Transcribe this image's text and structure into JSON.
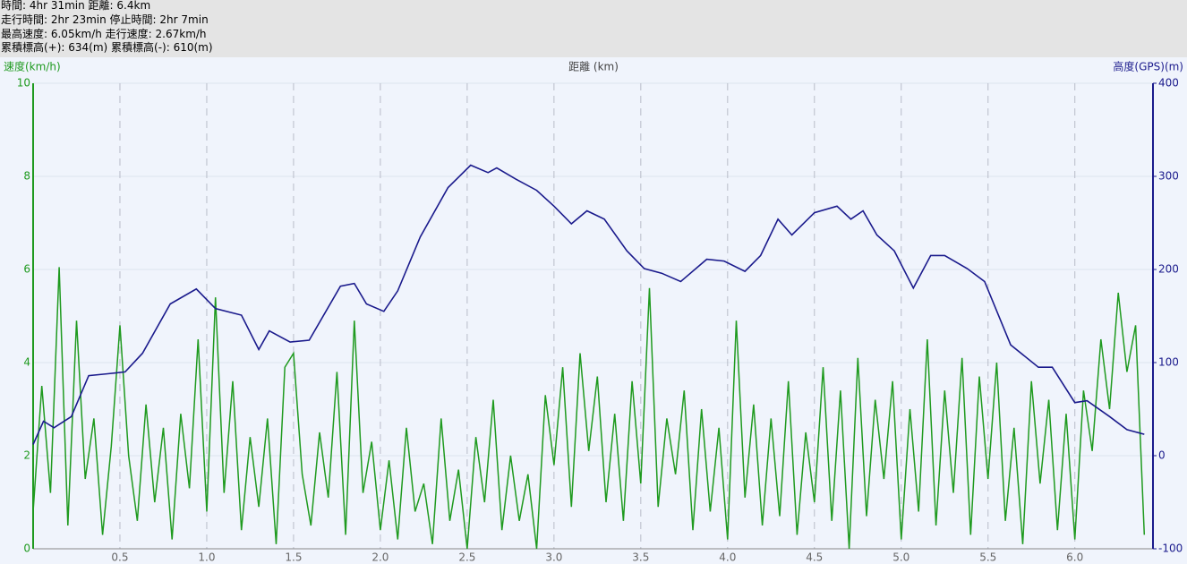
{
  "header": {
    "lines": [
      "時間: 4hr 31min 距離: 6.4km",
      "走行時間: 2hr 23min 停止時間: 2hr 7min",
      "最高速度: 6.05km/h 走行速度: 2.67km/h",
      "累積標高(+): 634(m) 累積標高(-): 610(m)"
    ]
  },
  "chart_data": {
    "type": "line",
    "xlabel": "距離 (km)",
    "ylabel": "速度(km/h)",
    "y2label": "高度(GPS)(m)",
    "xlim": [
      0,
      6.45
    ],
    "ylim": [
      0,
      10
    ],
    "y2lim": [
      -100,
      400
    ],
    "xticks": [
      0.5,
      {
        "value": 1,
        "label": "1.0"
      },
      1.5,
      {
        "value": 2,
        "label": "2.0"
      },
      2.5,
      {
        "value": 3,
        "label": "3.0"
      },
      3.5,
      {
        "value": 4,
        "label": "4.0"
      },
      4.5,
      {
        "value": 5,
        "label": "5.0"
      },
      5.5,
      {
        "value": 6,
        "label": "6.0"
      }
    ],
    "yticks": [
      0,
      2,
      4,
      6,
      8,
      10
    ],
    "y2ticks": [
      -100,
      0,
      100,
      200,
      300,
      400
    ],
    "grid": true,
    "series": [
      {
        "color": "#1f9a1f",
        "axis": "y",
        "x": [
          0,
          0.05,
          0.1,
          0.15,
          0.2,
          0.25,
          0.3,
          0.35,
          0.4,
          0.45,
          0.5,
          0.55,
          0.6,
          0.65,
          0.7,
          0.75,
          0.8,
          0.85,
          0.9,
          0.95,
          1,
          1.05,
          1.1,
          1.15,
          1.2,
          1.25,
          1.3,
          1.35,
          1.4,
          1.45,
          1.5,
          1.55,
          1.6,
          1.65,
          1.7,
          1.75,
          1.8,
          1.85,
          1.9,
          1.95,
          2,
          2.05,
          2.1,
          2.15,
          2.2,
          2.25,
          2.3,
          2.35,
          2.4,
          2.45,
          2.5,
          2.55,
          2.6,
          2.65,
          2.7,
          2.75,
          2.8,
          2.85,
          2.9,
          2.95,
          3,
          3.05,
          3.1,
          3.15,
          3.2,
          3.25,
          3.3,
          3.35,
          3.4,
          3.45,
          3.5,
          3.55,
          3.6,
          3.65,
          3.7,
          3.75,
          3.8,
          3.85,
          3.9,
          3.95,
          4,
          4.05,
          4.1,
          4.15,
          4.2,
          4.25,
          4.3,
          4.35,
          4.4,
          4.45,
          4.5,
          4.55,
          4.6,
          4.65,
          4.7,
          4.75,
          4.8,
          4.85,
          4.9,
          4.95,
          5,
          5.05,
          5.1,
          5.15,
          5.2,
          5.25,
          5.3,
          5.35,
          5.4,
          5.45,
          5.5,
          5.55,
          5.6,
          5.65,
          5.7,
          5.75,
          5.8,
          5.85,
          5.9,
          5.95,
          6,
          6.05,
          6.1,
          6.15,
          6.2,
          6.25,
          6.3,
          6.35,
          6.4
        ],
        "values": [
          0.8,
          3.5,
          1.2,
          6.05,
          0.5,
          4.9,
          1.5,
          2.8,
          0.3,
          2.2,
          4.8,
          2.0,
          0.6,
          3.1,
          1.0,
          2.6,
          0.2,
          2.9,
          1.3,
          4.5,
          0.8,
          5.4,
          1.2,
          3.6,
          0.4,
          2.4,
          0.9,
          2.8,
          0.1,
          3.9,
          4.2,
          1.6,
          0.5,
          2.5,
          1.1,
          3.8,
          0.3,
          4.9,
          1.2,
          2.3,
          0.4,
          1.9,
          0.2,
          2.6,
          0.8,
          1.4,
          0.1,
          2.8,
          0.6,
          1.7,
          0.0,
          2.4,
          1.0,
          3.2,
          0.4,
          2.0,
          0.6,
          1.6,
          0.0,
          3.3,
          1.8,
          3.9,
          0.9,
          4.2,
          2.1,
          3.7,
          1.0,
          2.9,
          0.6,
          3.6,
          1.4,
          5.6,
          0.9,
          2.8,
          1.6,
          3.4,
          0.4,
          3.0,
          0.8,
          2.6,
          0.2,
          4.9,
          1.1,
          3.1,
          0.5,
          2.8,
          0.7,
          3.6,
          0.3,
          2.5,
          1.0,
          3.9,
          0.6,
          3.4,
          0.0,
          4.1,
          0.7,
          3.2,
          1.5,
          3.6,
          0.2,
          3.0,
          0.8,
          4.5,
          0.5,
          3.4,
          1.2,
          4.1,
          0.3,
          3.7,
          1.5,
          4.0,
          0.6,
          2.6,
          0.1,
          3.6,
          1.4,
          3.2,
          0.4,
          2.9,
          0.2,
          3.4,
          2.1,
          4.5,
          3.0,
          5.5,
          3.8,
          4.8,
          0.3
        ]
      },
      {
        "color": "#1a1a8c",
        "axis": "y2",
        "x": [
          0,
          0.06,
          0.12,
          0.22,
          0.32,
          0.43,
          0.53,
          0.63,
          0.79,
          0.94,
          1.05,
          1.2,
          1.3,
          1.36,
          1.48,
          1.59,
          1.77,
          1.85,
          1.92,
          2.02,
          2.1,
          2.23,
          2.39,
          2.52,
          2.62,
          2.67,
          2.78,
          2.9,
          3.0,
          3.1,
          3.19,
          3.29,
          3.42,
          3.52,
          3.62,
          3.73,
          3.88,
          3.98,
          4.1,
          4.19,
          4.29,
          4.37,
          4.5,
          4.63,
          4.71,
          4.78,
          4.86,
          4.96,
          5.07,
          5.17,
          5.25,
          5.38,
          5.48,
          5.63,
          5.79,
          5.87,
          6.0,
          6.07,
          6.2,
          6.3,
          6.4
        ],
        "values": [
          12,
          37,
          30,
          42,
          86,
          88,
          90,
          110,
          163,
          179,
          158,
          151,
          114,
          134,
          122,
          124,
          182,
          185,
          163,
          155,
          177,
          235,
          288,
          312,
          304,
          309,
          297,
          285,
          268,
          249,
          263,
          254,
          220,
          201,
          196,
          187,
          211,
          209,
          198,
          215,
          254,
          237,
          261,
          268,
          254,
          263,
          237,
          220,
          180,
          215,
          215,
          201,
          187,
          119,
          95,
          95,
          57,
          59,
          42,
          28,
          23
        ]
      }
    ]
  }
}
